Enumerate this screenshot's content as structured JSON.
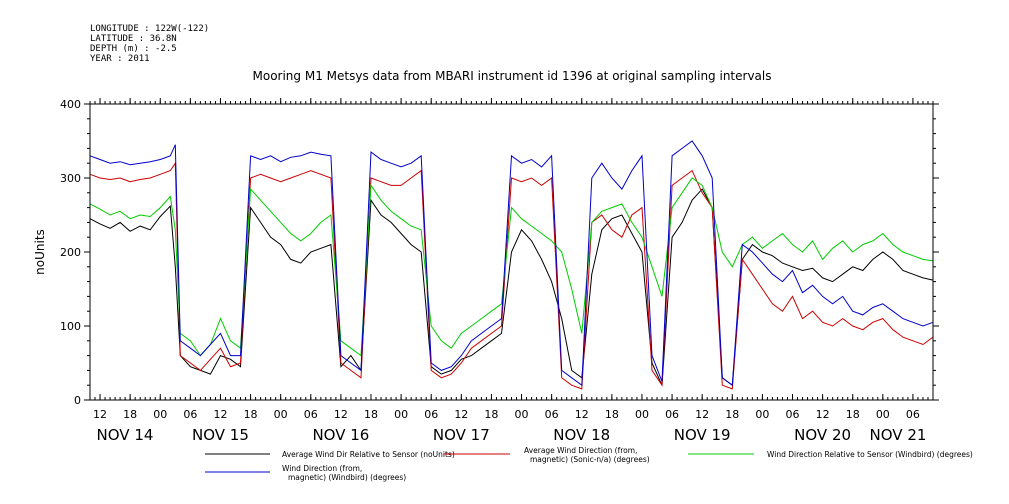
{
  "meta": {
    "longitude": "LONGITUDE : 122W(-122)",
    "latitude": "LATITUDE : 36.8N",
    "depth": "DEPTH (m) : -2.5",
    "year": "YEAR : 2011"
  },
  "chart_data": {
    "type": "line",
    "title": "Mooring M1 Metsys data from MBARI instrument id 1396 at original sampling intervals",
    "xlabel": "",
    "ylabel": "noUnits",
    "ylim": [
      0,
      400
    ],
    "yticks": [
      "0",
      "100",
      "200",
      "300",
      "400"
    ],
    "hour_ticks": [
      "12",
      "18",
      "00",
      "06",
      "12",
      "18",
      "00",
      "06",
      "12",
      "18",
      "00",
      "06",
      "12",
      "18",
      "00",
      "06",
      "12",
      "18",
      "00",
      "06",
      "12",
      "18",
      "00",
      "06",
      "12",
      "18",
      "00",
      "06"
    ],
    "day_labels": [
      "NOV 14",
      "NOV 15",
      "NOV 16",
      "NOV 17",
      "NOV 18",
      "NOV 19",
      "NOV 20",
      "NOV 21"
    ],
    "x_range_hours_since_nov14_00": [
      10,
      178
    ],
    "series": [
      {
        "name": "Average Wind Dir Relative to Sensor (noUnits)",
        "color": "#000000",
        "x": [
          10,
          12,
          14,
          16,
          18,
          20,
          22,
          24,
          26,
          27,
          28,
          30,
          32,
          34,
          36,
          38,
          40,
          42,
          44,
          46,
          48,
          50,
          52,
          54,
          56,
          58,
          60,
          62,
          64,
          66,
          68,
          70,
          72,
          74,
          76,
          78,
          80,
          82,
          84,
          86,
          88,
          90,
          92,
          94,
          96,
          98,
          100,
          102,
          104,
          106,
          108,
          110,
          112,
          114,
          116,
          118,
          120,
          122,
          124,
          126,
          128,
          130,
          132,
          134,
          136,
          138,
          140,
          142,
          144,
          146,
          148,
          150,
          152,
          154,
          156,
          158,
          160,
          162,
          164,
          166,
          168,
          170,
          172,
          174,
          176,
          178
        ],
        "y": [
          245,
          238,
          232,
          240,
          228,
          235,
          230,
          248,
          262,
          180,
          60,
          45,
          40,
          35,
          60,
          55,
          45,
          260,
          240,
          220,
          210,
          190,
          185,
          200,
          205,
          210,
          45,
          60,
          40,
          270,
          250,
          240,
          225,
          210,
          200,
          45,
          35,
          40,
          55,
          60,
          70,
          80,
          90,
          200,
          230,
          215,
          190,
          160,
          110,
          40,
          30,
          170,
          230,
          245,
          250,
          225,
          200,
          50,
          20,
          220,
          240,
          270,
          285,
          260,
          30,
          20,
          190,
          210,
          200,
          195,
          185,
          180,
          175,
          178,
          165,
          160,
          170,
          180,
          175,
          190,
          200,
          190,
          175,
          170,
          165,
          162
        ]
      },
      {
        "name": "Average Wind Direction (from, magnetic) (Sonic-n/a) (degrees)",
        "color": "#cc0000",
        "x": [
          10,
          12,
          14,
          16,
          18,
          20,
          22,
          24,
          26,
          27,
          28,
          30,
          32,
          34,
          36,
          38,
          40,
          42,
          44,
          46,
          48,
          50,
          52,
          54,
          56,
          58,
          60,
          62,
          64,
          66,
          68,
          70,
          72,
          74,
          76,
          78,
          80,
          82,
          84,
          86,
          88,
          90,
          92,
          94,
          96,
          98,
          100,
          102,
          104,
          106,
          108,
          110,
          112,
          114,
          116,
          118,
          120,
          122,
          124,
          126,
          128,
          130,
          132,
          134,
          136,
          138,
          140,
          142,
          144,
          146,
          148,
          150,
          152,
          154,
          156,
          158,
          160,
          162,
          164,
          166,
          168,
          170,
          172,
          174,
          176,
          178
        ],
        "y": [
          305,
          300,
          298,
          300,
          295,
          298,
          300,
          305,
          310,
          320,
          60,
          50,
          40,
          55,
          70,
          45,
          50,
          300,
          305,
          300,
          295,
          300,
          305,
          310,
          305,
          300,
          50,
          40,
          30,
          300,
          295,
          290,
          290,
          300,
          310,
          40,
          30,
          35,
          50,
          70,
          80,
          90,
          100,
          300,
          295,
          300,
          290,
          300,
          30,
          20,
          15,
          240,
          250,
          230,
          220,
          250,
          260,
          40,
          20,
          290,
          300,
          310,
          280,
          260,
          20,
          15,
          190,
          170,
          150,
          130,
          120,
          140,
          110,
          120,
          105,
          100,
          110,
          100,
          95,
          105,
          110,
          95,
          85,
          80,
          75,
          85
        ]
      },
      {
        "name": "Wind Direction Relative to Sensor (Windbird) (degrees)",
        "color": "#00cc00",
        "x": [
          10,
          12,
          14,
          16,
          18,
          20,
          22,
          24,
          26,
          27,
          28,
          30,
          32,
          34,
          36,
          38,
          40,
          42,
          44,
          46,
          48,
          50,
          52,
          54,
          56,
          58,
          60,
          62,
          64,
          66,
          68,
          70,
          72,
          74,
          76,
          78,
          80,
          82,
          84,
          86,
          88,
          90,
          92,
          94,
          96,
          98,
          100,
          102,
          104,
          106,
          108,
          110,
          112,
          114,
          116,
          118,
          120,
          122,
          124,
          126,
          128,
          130,
          132,
          134,
          136,
          138,
          140,
          142,
          144,
          146,
          148,
          150,
          152,
          154,
          156,
          158,
          160,
          162,
          164,
          166,
          168,
          170,
          172,
          174,
          176,
          178
        ],
        "y": [
          265,
          258,
          250,
          255,
          245,
          250,
          248,
          260,
          275,
          230,
          90,
          80,
          60,
          75,
          110,
          80,
          70,
          285,
          270,
          255,
          240,
          225,
          215,
          225,
          240,
          250,
          80,
          70,
          60,
          290,
          270,
          255,
          245,
          235,
          230,
          100,
          80,
          70,
          90,
          100,
          110,
          120,
          130,
          260,
          245,
          235,
          225,
          215,
          200,
          150,
          90,
          240,
          255,
          260,
          265,
          240,
          220,
          180,
          140,
          260,
          280,
          300,
          290,
          260,
          200,
          180,
          210,
          220,
          205,
          215,
          225,
          210,
          200,
          215,
          190,
          205,
          215,
          200,
          210,
          215,
          225,
          210,
          200,
          195,
          190,
          188
        ]
      },
      {
        "name": "Wind Direction (from, magnetic) (Windbird) (degrees)",
        "color": "#0000cc",
        "x": [
          10,
          12,
          14,
          16,
          18,
          20,
          22,
          24,
          26,
          27,
          28,
          30,
          32,
          34,
          36,
          38,
          40,
          42,
          44,
          46,
          48,
          50,
          52,
          54,
          56,
          58,
          60,
          62,
          64,
          66,
          68,
          70,
          72,
          74,
          76,
          78,
          80,
          82,
          84,
          86,
          88,
          90,
          92,
          94,
          96,
          98,
          100,
          102,
          104,
          106,
          108,
          110,
          112,
          114,
          116,
          118,
          120,
          122,
          124,
          126,
          128,
          130,
          132,
          134,
          136,
          138,
          140,
          142,
          144,
          146,
          148,
          150,
          152,
          154,
          156,
          158,
          160,
          162,
          164,
          166,
          168,
          170,
          172,
          174,
          176,
          178
        ],
        "y": [
          330,
          325,
          320,
          322,
          318,
          320,
          322,
          325,
          330,
          345,
          80,
          70,
          60,
          75,
          90,
          60,
          60,
          330,
          325,
          330,
          322,
          328,
          330,
          335,
          332,
          330,
          60,
          50,
          40,
          335,
          325,
          320,
          315,
          320,
          330,
          50,
          40,
          45,
          60,
          80,
          90,
          100,
          110,
          330,
          320,
          325,
          315,
          330,
          40,
          30,
          20,
          300,
          320,
          300,
          285,
          310,
          330,
          60,
          25,
          330,
          340,
          350,
          330,
          300,
          30,
          20,
          210,
          200,
          185,
          170,
          160,
          175,
          145,
          155,
          140,
          130,
          140,
          120,
          115,
          125,
          130,
          120,
          110,
          105,
          100,
          105
        ]
      }
    ]
  }
}
